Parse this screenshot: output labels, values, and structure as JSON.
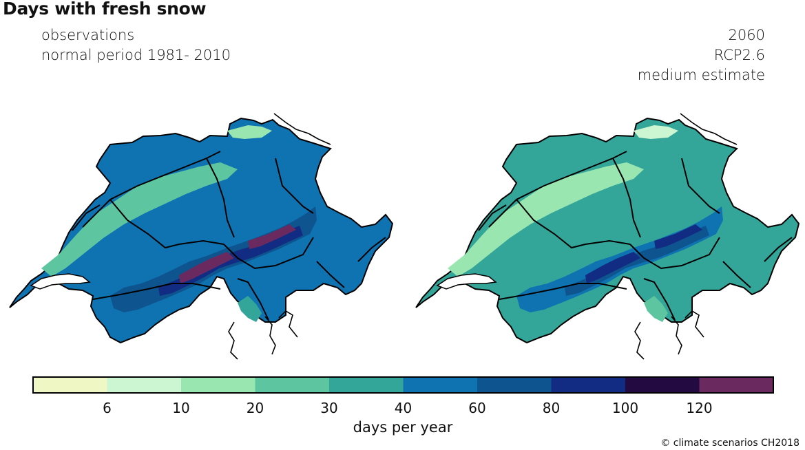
{
  "header": {
    "title": "Days with fresh snow"
  },
  "left_panel": {
    "lines": [
      "observations",
      "normal period 1981- 2010"
    ]
  },
  "right_panel": {
    "lines": [
      "2060",
      "RCP2.6",
      "medium estimate"
    ]
  },
  "colorbar": {
    "label": "days per year",
    "ticks": [
      "6",
      "10",
      "20",
      "30",
      "40",
      "60",
      "80",
      "100",
      "120"
    ],
    "colors": [
      "#eff8c4",
      "#ccf5d2",
      "#99e6b0",
      "#5dc59f",
      "#33a599",
      "#0f72b1",
      "#0e548f",
      "#112c82",
      "#230a40",
      "#6a2a5f"
    ]
  },
  "credit": "© climate scenarios CH2018"
}
